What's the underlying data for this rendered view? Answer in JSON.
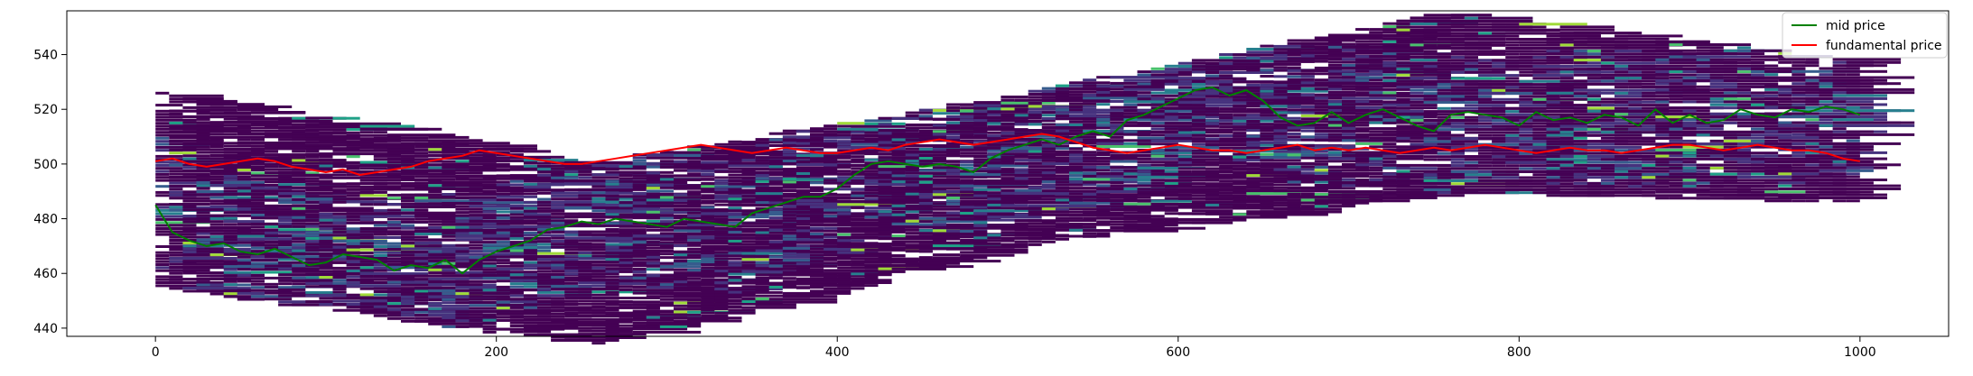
{
  "chart_data": {
    "type": "line",
    "title": "",
    "xlabel": "",
    "ylabel": "",
    "xlim": [
      -52,
      1052
    ],
    "ylim": [
      437,
      556
    ],
    "x_ticks": [
      0,
      200,
      400,
      600,
      800,
      1000
    ],
    "y_ticks": [
      440,
      460,
      480,
      500,
      520,
      540
    ],
    "grid": false,
    "legend": {
      "placement": "upper right",
      "entries": [
        "mid price",
        "fundamental price"
      ]
    },
    "series": [
      {
        "name": "mid price",
        "color": "#008000",
        "x": [
          0,
          10,
          20,
          30,
          40,
          50,
          60,
          70,
          80,
          90,
          100,
          110,
          120,
          130,
          140,
          150,
          160,
          170,
          180,
          190,
          200,
          210,
          220,
          230,
          240,
          250,
          260,
          270,
          280,
          290,
          300,
          310,
          320,
          330,
          340,
          350,
          360,
          370,
          380,
          390,
          400,
          410,
          420,
          430,
          440,
          450,
          460,
          470,
          480,
          490,
          500,
          510,
          520,
          530,
          540,
          550,
          560,
          570,
          580,
          590,
          600,
          610,
          620,
          630,
          640,
          650,
          660,
          670,
          680,
          690,
          700,
          710,
          720,
          730,
          740,
          750,
          760,
          770,
          780,
          790,
          800,
          810,
          820,
          830,
          840,
          850,
          860,
          870,
          880,
          890,
          900,
          910,
          920,
          930,
          940,
          950,
          960,
          970,
          980,
          990,
          1000
        ],
        "y": [
          485,
          475,
          472,
          470,
          471,
          468,
          467,
          469,
          466,
          463,
          464,
          467,
          466,
          465,
          461,
          463,
          462,
          465,
          460,
          465,
          468,
          470,
          472,
          476,
          477,
          479,
          478,
          480,
          479,
          478,
          477,
          480,
          479,
          478,
          477,
          482,
          484,
          486,
          488,
          488,
          491,
          496,
          500,
          501,
          500,
          499,
          500,
          499,
          497,
          502,
          505,
          507,
          509,
          507,
          510,
          512,
          510,
          516,
          518,
          521,
          524,
          527,
          528,
          525,
          527,
          523,
          517,
          514,
          515,
          519,
          515,
          518,
          520,
          517,
          514,
          512,
          518,
          519,
          518,
          517,
          514,
          519,
          516,
          517,
          515,
          518,
          517,
          514,
          520,
          515,
          518,
          515,
          516,
          520,
          518,
          517,
          520,
          519,
          521,
          520,
          518
        ]
      },
      {
        "name": "fundamental price",
        "color": "#ff0000",
        "x": [
          0,
          10,
          20,
          30,
          40,
          50,
          60,
          70,
          80,
          90,
          100,
          110,
          120,
          130,
          140,
          150,
          160,
          170,
          180,
          190,
          200,
          210,
          220,
          230,
          240,
          250,
          260,
          270,
          280,
          290,
          300,
          310,
          320,
          330,
          340,
          350,
          360,
          370,
          380,
          390,
          400,
          410,
          420,
          430,
          440,
          450,
          460,
          470,
          480,
          490,
          500,
          510,
          520,
          530,
          540,
          550,
          560,
          570,
          580,
          590,
          600,
          610,
          620,
          630,
          640,
          650,
          660,
          670,
          680,
          690,
          700,
          710,
          720,
          730,
          740,
          750,
          760,
          770,
          780,
          790,
          800,
          810,
          820,
          830,
          840,
          850,
          860,
          870,
          880,
          890,
          900,
          910,
          920,
          930,
          940,
          950,
          960,
          970,
          980,
          990,
          1000
        ],
        "y": [
          501,
          502,
          500,
          499,
          500,
          501,
          502,
          501,
          499,
          498,
          497,
          498,
          496,
          497,
          498,
          499,
          501,
          502,
          503,
          505,
          504,
          503,
          502,
          501,
          500,
          500,
          501,
          502,
          503,
          504,
          505,
          506,
          507,
          506,
          505,
          504,
          505,
          506,
          505,
          504,
          504,
          505,
          506,
          505,
          507,
          508,
          509,
          508,
          507,
          508,
          509,
          510,
          511,
          510,
          508,
          506,
          505,
          504,
          505,
          506,
          507,
          506,
          505,
          505,
          504,
          505,
          506,
          507,
          505,
          506,
          505,
          506,
          505,
          504,
          505,
          506,
          505,
          506,
          507,
          506,
          505,
          504,
          505,
          506,
          505,
          505,
          504,
          505,
          506,
          507,
          507,
          506,
          505,
          506,
          507,
          506,
          505,
          505,
          504,
          502,
          501
        ]
      }
    ],
    "heatmap": {
      "colormap": "viridis",
      "orderbook_bands": [
        {
          "t": [
            0,
            250,
            500,
            750,
            1000
          ],
          "upper": [
            526,
            500,
            525,
            555,
            537
          ],
          "lower": [
            455,
            434,
            470,
            490,
            486
          ]
        }
      ]
    }
  }
}
